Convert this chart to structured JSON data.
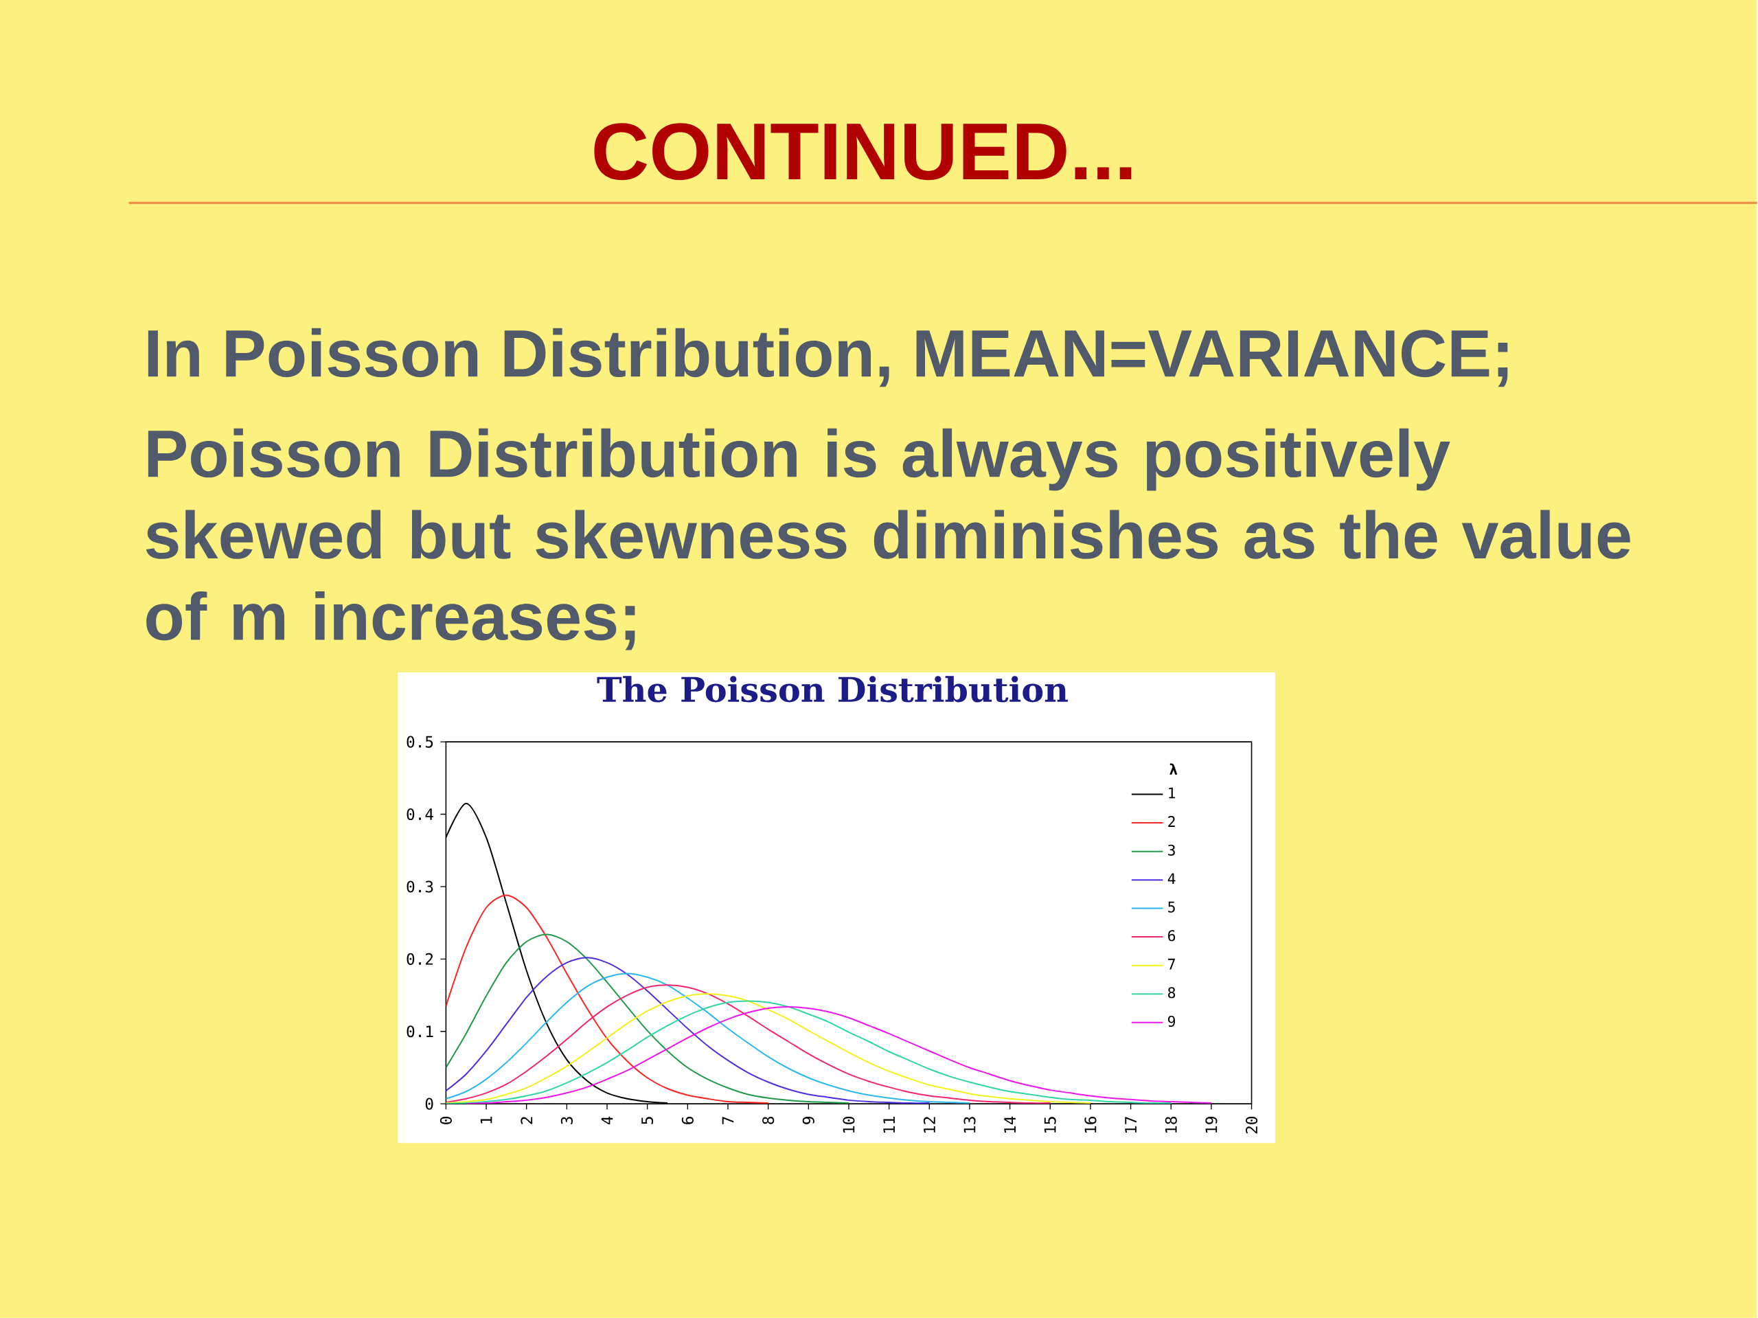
{
  "chart_data": {
    "type": "line",
    "title": "The Poisson Distribution",
    "legend_title": "λ",
    "annotations": [
      "CONTINUED...",
      "In Poisson Distribution, MEAN=VARIANCE;",
      "Poisson Distribution is always positively skewed but skewness diminishes as the value of m increases;"
    ],
    "xlim": [
      0,
      20
    ],
    "xticks": [
      0,
      1,
      2,
      3,
      4,
      5,
      6,
      7,
      8,
      9,
      10,
      11,
      12,
      13,
      14,
      15,
      16,
      17,
      18,
      19,
      20
    ],
    "ylim": [
      0,
      0.5
    ],
    "yticks": [
      0,
      0.1,
      0.2,
      0.3,
      0.4,
      0.5
    ],
    "legend": "top right",
    "series": [
      {
        "name": "1",
        "color": "#000000",
        "x": [
          0,
          0.5,
          1,
          1.5,
          2,
          2.5,
          3,
          3.5,
          4,
          4.5,
          5,
          5.5
        ],
        "values": [
          0.368,
          0.415,
          0.368,
          0.277,
          0.184,
          0.111,
          0.061,
          0.032,
          0.015,
          0.007,
          0.003,
          0.001
        ]
      },
      {
        "name": "2",
        "color": "#ff2424",
        "x": [
          0,
          0.5,
          1,
          1.5,
          2,
          2.5,
          3,
          3.5,
          4,
          4.5,
          5,
          5.5,
          6,
          6.5,
          7,
          7.5,
          8
        ],
        "values": [
          0.135,
          0.216,
          0.271,
          0.288,
          0.271,
          0.23,
          0.18,
          0.132,
          0.09,
          0.059,
          0.036,
          0.021,
          0.012,
          0.007,
          0.003,
          0.002,
          0.001
        ]
      },
      {
        "name": "3",
        "color": "#1f9a48",
        "x": [
          0,
          0.5,
          1,
          1.5,
          2,
          2.5,
          3,
          3.5,
          4,
          4.5,
          5,
          5.5,
          6,
          6.5,
          7,
          7.5,
          8,
          8.5,
          9,
          9.5,
          10
        ],
        "values": [
          0.05,
          0.097,
          0.149,
          0.195,
          0.224,
          0.234,
          0.224,
          0.2,
          0.168,
          0.134,
          0.101,
          0.073,
          0.05,
          0.034,
          0.022,
          0.013,
          0.008,
          0.005,
          0.003,
          0.002,
          0.001
        ]
      },
      {
        "name": "4",
        "color": "#4a2ee0",
        "x": [
          0,
          0.5,
          1,
          1.5,
          2,
          2.5,
          3,
          3.5,
          4,
          4.5,
          5,
          5.5,
          6,
          6.5,
          7,
          7.5,
          8,
          8.5,
          9,
          9.5,
          10,
          10.5,
          11,
          11.5,
          12
        ],
        "values": [
          0.018,
          0.041,
          0.073,
          0.11,
          0.147,
          0.176,
          0.195,
          0.202,
          0.195,
          0.179,
          0.156,
          0.13,
          0.104,
          0.08,
          0.06,
          0.043,
          0.03,
          0.02,
          0.013,
          0.009,
          0.005,
          0.003,
          0.002,
          0.001,
          0.001
        ]
      },
      {
        "name": "5",
        "color": "#2ab8ee",
        "x": [
          0,
          0.5,
          1,
          1.5,
          2,
          2.5,
          3,
          3.5,
          4,
          4.5,
          5,
          5.5,
          6,
          6.5,
          7,
          7.5,
          8,
          8.5,
          9,
          9.5,
          10,
          10.5,
          11,
          11.5,
          12,
          12.5,
          13
        ],
        "values": [
          0.007,
          0.017,
          0.034,
          0.057,
          0.084,
          0.113,
          0.14,
          0.162,
          0.175,
          0.18,
          0.175,
          0.164,
          0.146,
          0.126,
          0.104,
          0.084,
          0.065,
          0.049,
          0.036,
          0.026,
          0.018,
          0.012,
          0.008,
          0.005,
          0.003,
          0.002,
          0.001
        ]
      },
      {
        "name": "6",
        "color": "#f5246e",
        "x": [
          0,
          0.5,
          1,
          1.5,
          2,
          2.5,
          3,
          3.5,
          4,
          4.5,
          5,
          5.5,
          6,
          6.5,
          7,
          7.5,
          8,
          8.5,
          9,
          9.5,
          10,
          10.5,
          11,
          11.5,
          12,
          12.5,
          13,
          13.5,
          14,
          14.5,
          15
        ],
        "values": [
          0.002,
          0.007,
          0.015,
          0.027,
          0.045,
          0.066,
          0.089,
          0.113,
          0.134,
          0.15,
          0.161,
          0.164,
          0.161,
          0.152,
          0.138,
          0.121,
          0.103,
          0.086,
          0.069,
          0.054,
          0.041,
          0.031,
          0.023,
          0.016,
          0.011,
          0.008,
          0.005,
          0.003,
          0.002,
          0.001,
          0.001
        ]
      },
      {
        "name": "7",
        "color": "#f2f21a",
        "x": [
          0,
          0.5,
          1,
          1.5,
          2,
          2.5,
          3,
          3.5,
          4,
          4.5,
          5,
          5.5,
          6,
          6.5,
          7,
          7.5,
          8,
          8.5,
          9,
          9.5,
          10,
          10.5,
          11,
          11.5,
          12,
          12.5,
          13,
          13.5,
          14,
          14.5,
          15,
          15.5,
          16
        ],
        "values": [
          0.001,
          0.003,
          0.006,
          0.013,
          0.022,
          0.036,
          0.052,
          0.071,
          0.091,
          0.111,
          0.128,
          0.141,
          0.149,
          0.152,
          0.149,
          0.142,
          0.13,
          0.117,
          0.101,
          0.086,
          0.071,
          0.057,
          0.045,
          0.035,
          0.026,
          0.02,
          0.014,
          0.01,
          0.007,
          0.005,
          0.003,
          0.002,
          0.001
        ]
      },
      {
        "name": "8",
        "color": "#2fd6a4",
        "x": [
          0,
          0.5,
          1,
          1.5,
          2,
          2.5,
          3,
          3.5,
          4,
          4.5,
          5,
          5.5,
          6,
          6.5,
          7,
          7.5,
          8,
          8.5,
          9,
          9.5,
          10,
          10.5,
          11,
          11.5,
          12,
          12.5,
          13,
          13.5,
          14,
          14.5,
          15,
          15.5,
          16,
          16.5,
          17,
          17.5,
          18
        ],
        "values": [
          0,
          0.001,
          0.003,
          0.006,
          0.011,
          0.018,
          0.029,
          0.042,
          0.057,
          0.074,
          0.092,
          0.108,
          0.122,
          0.133,
          0.14,
          0.142,
          0.14,
          0.134,
          0.124,
          0.113,
          0.099,
          0.086,
          0.072,
          0.06,
          0.048,
          0.038,
          0.03,
          0.023,
          0.017,
          0.013,
          0.009,
          0.006,
          0.005,
          0.003,
          0.002,
          0.001,
          0.001
        ]
      },
      {
        "name": "9",
        "color": "#ee14ee",
        "x": [
          0.5,
          1,
          1.5,
          2,
          2.5,
          3,
          3.5,
          4,
          4.5,
          5,
          5.5,
          6,
          6.5,
          7,
          7.5,
          8,
          8.5,
          9,
          9.5,
          10,
          10.5,
          11,
          11.5,
          12,
          12.5,
          13,
          13.5,
          14,
          14.5,
          15,
          15.5,
          16,
          16.5,
          17,
          17.5,
          18,
          18.5,
          19
        ],
        "values": [
          0,
          0.001,
          0.003,
          0.005,
          0.009,
          0.015,
          0.023,
          0.034,
          0.046,
          0.061,
          0.076,
          0.091,
          0.105,
          0.117,
          0.126,
          0.132,
          0.134,
          0.132,
          0.127,
          0.119,
          0.108,
          0.097,
          0.085,
          0.073,
          0.061,
          0.05,
          0.041,
          0.032,
          0.025,
          0.019,
          0.015,
          0.011,
          0.008,
          0.006,
          0.004,
          0.003,
          0.002,
          0.001
        ]
      }
    ]
  }
}
